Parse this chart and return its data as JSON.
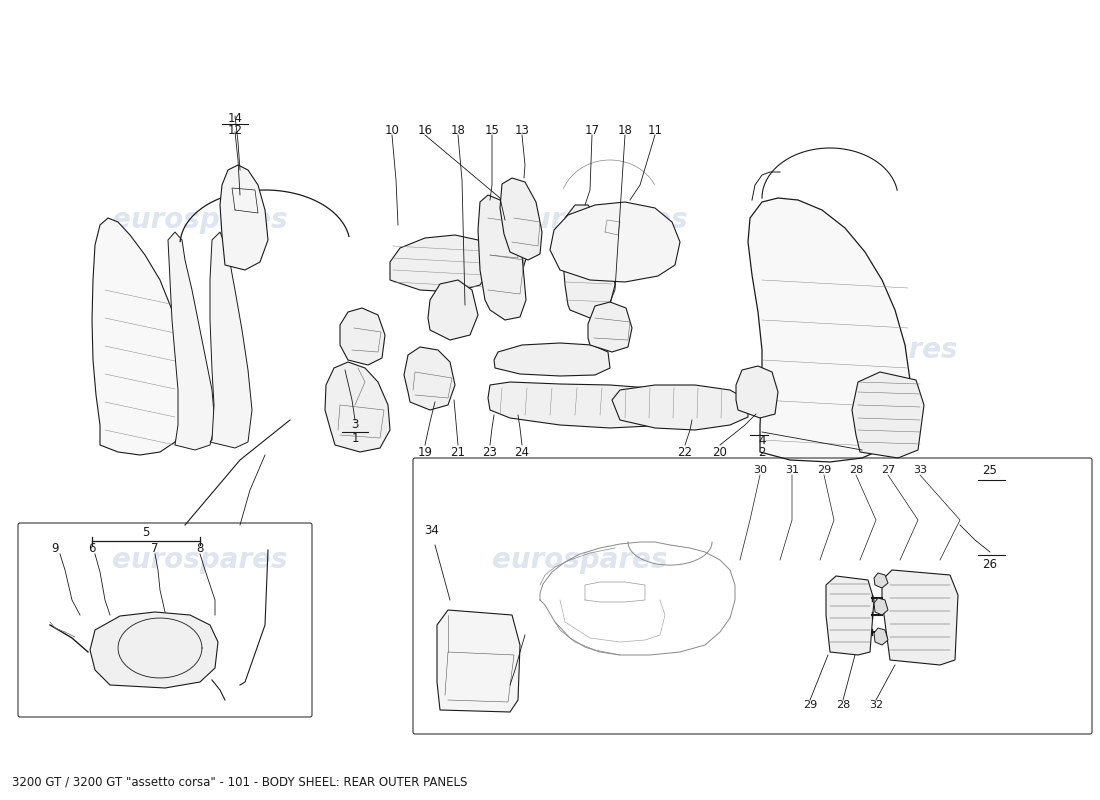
{
  "title": "3200 GT / 3200 GT \"assetto corsa\" - 101 - BODY SHEEL: REAR OUTER PANELS",
  "title_fontsize": 8.5,
  "bg_color": "#ffffff",
  "line_color": "#1a1a1a",
  "part_line_color": "#2a2a2a",
  "wm_color": "#c8d4e8",
  "wm_text": "eurospares",
  "fig_width": 11.0,
  "fig_height": 8.0,
  "dpi": 100
}
